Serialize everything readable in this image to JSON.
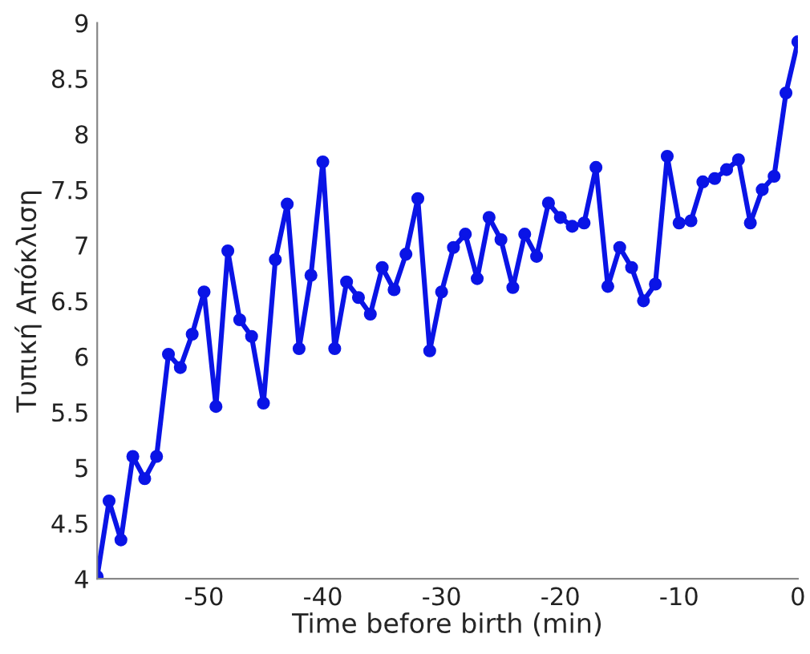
{
  "chart_data": {
    "type": "line",
    "xlabel": "Time before birth (min)",
    "ylabel": "Τυπική Απόκλιση",
    "x": [
      -59,
      -58,
      -57,
      -56,
      -55,
      -54,
      -53,
      -52,
      -51,
      -50,
      -49,
      -48,
      -47,
      -46,
      -45,
      -44,
      -43,
      -42,
      -41,
      -40,
      -39,
      -38,
      -37,
      -36,
      -35,
      -34,
      -33,
      -32,
      -31,
      -30,
      -29,
      -28,
      -27,
      -26,
      -25,
      -24,
      -23,
      -22,
      -21,
      -20,
      -19,
      -18,
      -17,
      -16,
      -15,
      -14,
      -13,
      -12,
      -11,
      -10,
      -9,
      -8,
      -7,
      -6,
      -5,
      -4,
      -3,
      -2,
      -1,
      0
    ],
    "series": [
      {
        "color": "#0a14e6",
        "values": [
          4.02,
          4.7,
          4.35,
          5.1,
          4.9,
          5.1,
          6.02,
          5.9,
          6.2,
          6.58,
          5.55,
          6.95,
          6.33,
          6.18,
          5.58,
          6.87,
          7.37,
          6.07,
          6.73,
          7.75,
          6.07,
          6.67,
          6.53,
          6.38,
          6.8,
          6.6,
          6.92,
          7.42,
          6.05,
          6.58,
          6.98,
          7.1,
          6.7,
          7.25,
          7.05,
          6.62,
          7.1,
          6.9,
          7.38,
          7.25,
          7.17,
          7.2,
          7.7,
          6.63,
          6.98,
          6.8,
          6.5,
          6.65,
          7.8,
          7.2,
          7.22,
          7.57,
          7.6,
          7.68,
          7.77,
          7.2,
          7.5,
          7.62,
          8.37,
          8.83
        ]
      }
    ],
    "xlim": [
      -59,
      0
    ],
    "xticks": [
      -50,
      -40,
      -30,
      -20,
      -10,
      0
    ],
    "ylim": [
      4,
      9
    ],
    "yticks": [
      4,
      4.5,
      5,
      5.5,
      6,
      6.5,
      7,
      7.5,
      8,
      8.5,
      9
    ],
    "grid": false,
    "marker": "circle",
    "line_style": "solid"
  }
}
